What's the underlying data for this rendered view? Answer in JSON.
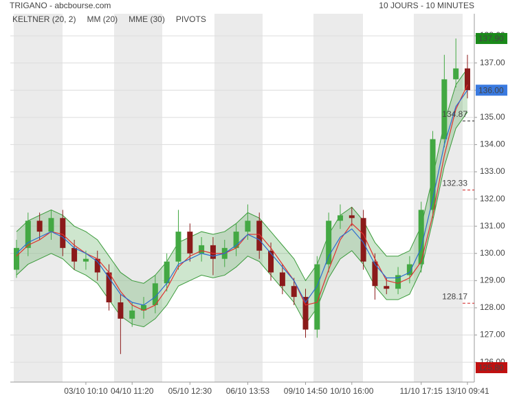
{
  "chart_data": {
    "type": "candlestick",
    "title": "TRIGANO - abcbourse.com",
    "subtitle": "10 JOURS - 10 MINUTES",
    "categories": [
      null,
      null,
      null,
      null,
      null,
      null,
      "03/10 10:10",
      null,
      null,
      null,
      "04/10 11:20",
      null,
      null,
      null,
      null,
      "05/10 12:30",
      null,
      null,
      null,
      null,
      "06/10 13:53",
      null,
      null,
      null,
      null,
      "09/10 14:50",
      null,
      null,
      null,
      "10/10 16:00",
      null,
      null,
      null,
      null,
      null,
      "11/10 17:15",
      null,
      null,
      null,
      "13/10 09:41"
    ],
    "candles": {
      "up_color": "#43a843",
      "down_color": "#8b1a1a",
      "open": [
        129.4,
        130.2,
        131.2,
        130.8,
        131.3,
        130.2,
        129.7,
        129.8,
        129.3,
        128.2,
        127.6,
        127.9,
        128.1,
        128.9,
        129.7,
        130.8,
        130.0,
        130.3,
        129.8,
        130.2,
        130.8,
        131.2,
        130.1,
        129.3,
        128.8,
        128.4,
        127.2,
        129.6,
        131.2,
        131.4,
        131.3,
        129.7,
        128.8,
        128.7,
        129.2,
        129.6,
        131.6,
        134.2,
        136.4,
        136.8
      ],
      "high": [
        130.5,
        131.5,
        131.5,
        131.6,
        131.6,
        130.5,
        130.1,
        130.1,
        129.6,
        128.5,
        128.2,
        128.4,
        129.2,
        130.0,
        131.6,
        131.1,
        130.6,
        130.6,
        130.5,
        131.1,
        131.8,
        131.5,
        130.4,
        129.6,
        129.1,
        128.7,
        129.9,
        131.5,
        131.8,
        131.7,
        131.6,
        130.0,
        129.1,
        129.5,
        129.9,
        131.9,
        134.5,
        137.3,
        137.9,
        137.3
      ],
      "low": [
        129.1,
        129.9,
        130.5,
        130.5,
        129.9,
        129.4,
        129.4,
        129.0,
        127.9,
        126.3,
        127.3,
        127.6,
        127.8,
        128.6,
        129.4,
        129.7,
        129.7,
        129.2,
        129.5,
        129.9,
        130.5,
        129.8,
        129.0,
        128.5,
        128.1,
        126.9,
        126.9,
        129.3,
        130.9,
        131.0,
        129.4,
        128.3,
        128.5,
        128.5,
        128.9,
        129.3,
        131.3,
        133.9,
        136.1,
        135.7
      ],
      "close": [
        130.2,
        131.2,
        130.8,
        131.3,
        130.2,
        129.7,
        129.8,
        129.3,
        128.2,
        127.6,
        127.9,
        128.1,
        128.9,
        129.7,
        130.8,
        130.0,
        130.3,
        129.8,
        130.2,
        130.8,
        131.2,
        130.1,
        129.3,
        128.8,
        128.4,
        127.2,
        129.6,
        131.2,
        131.4,
        131.3,
        129.7,
        128.8,
        128.7,
        129.2,
        129.6,
        131.6,
        134.2,
        136.4,
        136.8,
        136.0
      ]
    },
    "keltner": {
      "name": "KELTNER (20, 2)",
      "color": "#3a9a3a",
      "upper": [
        130.8,
        131.2,
        131.4,
        131.6,
        131.4,
        131.0,
        130.8,
        130.5,
        129.9,
        129.3,
        129.0,
        128.9,
        129.2,
        129.7,
        130.4,
        130.6,
        130.8,
        130.7,
        130.8,
        131.1,
        131.5,
        131.3,
        130.8,
        130.3,
        129.8,
        129.0,
        129.6,
        130.7,
        131.4,
        131.7,
        131.2,
        130.4,
        129.9,
        129.9,
        130.1,
        131.0,
        132.8,
        134.8,
        136.2,
        136.8
      ],
      "lower": [
        129.2,
        129.6,
        129.8,
        130.0,
        129.8,
        129.4,
        129.2,
        128.9,
        128.3,
        127.7,
        127.4,
        127.3,
        127.6,
        128.1,
        128.8,
        129.0,
        129.2,
        129.1,
        129.2,
        129.5,
        129.9,
        129.7,
        129.2,
        128.7,
        128.2,
        127.4,
        128.0,
        129.1,
        129.8,
        130.1,
        129.6,
        128.8,
        128.3,
        128.3,
        128.5,
        129.4,
        131.2,
        133.2,
        134.6,
        135.2
      ]
    },
    "series": [
      {
        "name": "MM (20)",
        "color": "#e03030",
        "values": [
          129.9,
          130.3,
          130.5,
          130.8,
          130.7,
          130.3,
          130.0,
          129.8,
          129.3,
          128.6,
          128.1,
          127.9,
          128.1,
          128.7,
          129.5,
          129.9,
          130.1,
          130.0,
          130.0,
          130.2,
          130.7,
          130.7,
          130.2,
          129.6,
          129.0,
          128.1,
          128.2,
          129.4,
          130.5,
          131.1,
          130.7,
          129.8,
          129.0,
          128.9,
          129.1,
          129.7,
          131.4,
          133.6,
          135.3,
          136.2
        ]
      },
      {
        "name": "MME (30)",
        "color": "#2a6ad0",
        "values": [
          130.0,
          130.4,
          130.6,
          130.8,
          130.6,
          130.2,
          130.0,
          129.7,
          129.1,
          128.5,
          128.2,
          128.1,
          128.4,
          128.9,
          129.6,
          129.8,
          130.0,
          129.9,
          130.0,
          130.3,
          130.7,
          130.5,
          130.0,
          129.5,
          129.0,
          128.2,
          128.8,
          129.9,
          130.6,
          130.9,
          130.4,
          129.6,
          129.1,
          129.1,
          129.3,
          130.2,
          132.0,
          134.0,
          135.4,
          136.0
        ]
      }
    ],
    "pivots": {
      "name": "PIVOTS",
      "levels": [
        {
          "value": 134.87,
          "color": "#222222"
        },
        {
          "value": 132.33,
          "color": "#d02020"
        },
        {
          "value": 128.17,
          "color": "#d02020"
        }
      ]
    },
    "markers": [
      {
        "value": 137.9,
        "label": "137.90",
        "color": "#1a8a1a"
      },
      {
        "value": 136.0,
        "label": "136.00",
        "color": "#3a7ae0"
      },
      {
        "value": 125.8,
        "label": "125.80",
        "color": "#c01010"
      }
    ],
    "ylim": [
      125.27,
      138.81
    ],
    "yticks": [
      {
        "value": 126,
        "label": "126.00"
      },
      {
        "value": 127,
        "label": "127.00"
      },
      {
        "value": 128,
        "label": "128.00"
      },
      {
        "value": 129,
        "label": "129.00"
      },
      {
        "value": 130,
        "label": "130.00"
      },
      {
        "value": 131,
        "label": "131.00"
      },
      {
        "value": 132,
        "label": "132.00"
      },
      {
        "value": 133,
        "label": "133.00"
      },
      {
        "value": 134,
        "label": "134.00"
      },
      {
        "value": 135,
        "label": "135.00"
      },
      {
        "value": 136,
        "label": "136.00"
      },
      {
        "value": 137,
        "label": "137.00"
      },
      {
        "value": 138,
        "label": "138.00"
      }
    ],
    "grid": true
  }
}
